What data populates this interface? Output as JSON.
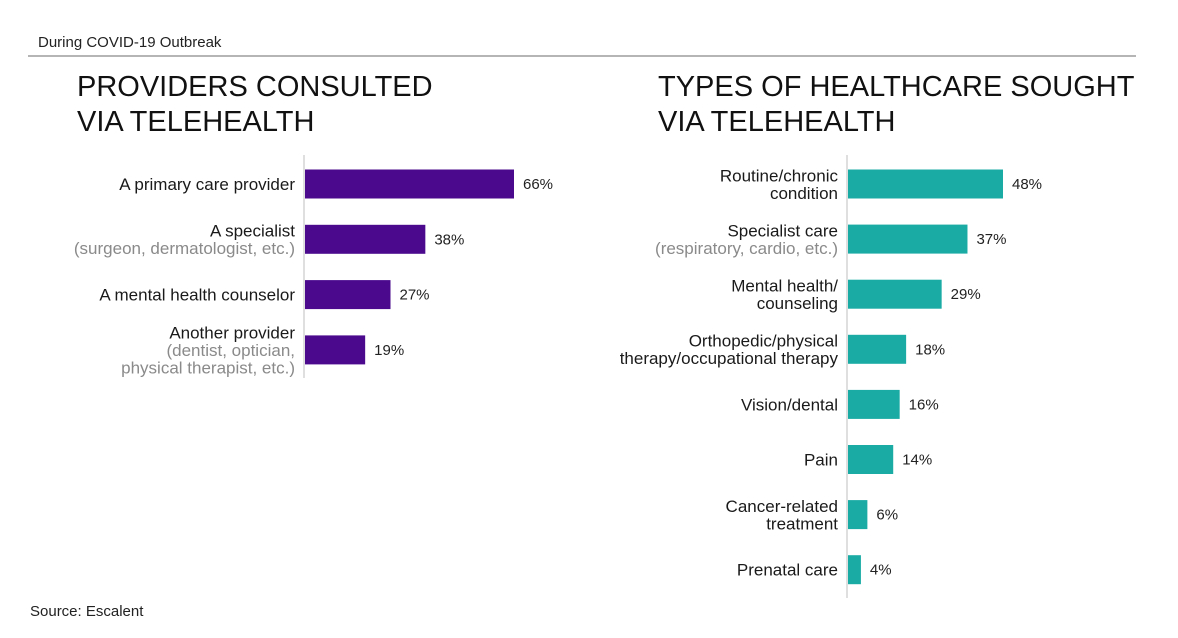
{
  "header": {
    "label": "During COVID-19 Outbreak"
  },
  "source": {
    "label": "Source: Escalent"
  },
  "chart_data": [
    {
      "type": "bar",
      "orientation": "horizontal",
      "title": [
        "PROVIDERS CONSULTED",
        "VIA TELEHEALTH"
      ],
      "color": "#4b0a8e",
      "categories": [
        {
          "label": [
            "A primary care provider"
          ],
          "sub": []
        },
        {
          "label": [
            "A specialist"
          ],
          "sub": [
            "(surgeon, dermatologist, etc.)"
          ]
        },
        {
          "label": [
            "A mental health counselor"
          ],
          "sub": []
        },
        {
          "label": [
            "Another provider"
          ],
          "sub": [
            "(dentist, optician,",
            "physical therapist, etc.)"
          ]
        }
      ],
      "values": [
        66,
        38,
        27,
        19
      ],
      "data_labels": [
        "66%",
        "38%",
        "27%",
        "19%"
      ],
      "unit": "%",
      "xlim": [
        0,
        100
      ]
    },
    {
      "type": "bar",
      "orientation": "horizontal",
      "title": [
        "TYPES OF HEALTHCARE SOUGHT",
        "VIA TELEHEALTH"
      ],
      "color": "#1aaba4",
      "categories": [
        {
          "label": [
            "Routine/chronic",
            "condition"
          ],
          "sub": []
        },
        {
          "label": [
            "Specialist care"
          ],
          "sub": [
            "(respiratory, cardio, etc.)"
          ]
        },
        {
          "label": [
            "Mental health/",
            "counseling"
          ],
          "sub": []
        },
        {
          "label": [
            "Orthopedic/physical",
            "therapy/occupational therapy"
          ],
          "sub": []
        },
        {
          "label": [
            "Vision/dental"
          ],
          "sub": []
        },
        {
          "label": [
            "Pain"
          ],
          "sub": []
        },
        {
          "label": [
            "Cancer-related",
            "treatment"
          ],
          "sub": []
        },
        {
          "label": [
            "Prenatal care"
          ],
          "sub": []
        }
      ],
      "values": [
        48,
        37,
        29,
        18,
        16,
        14,
        6,
        4
      ],
      "data_labels": [
        "48%",
        "37%",
        "29%",
        "18%",
        "16%",
        "14%",
        "6%",
        "4%"
      ],
      "unit": "%",
      "xlim": [
        0,
        100
      ]
    }
  ]
}
